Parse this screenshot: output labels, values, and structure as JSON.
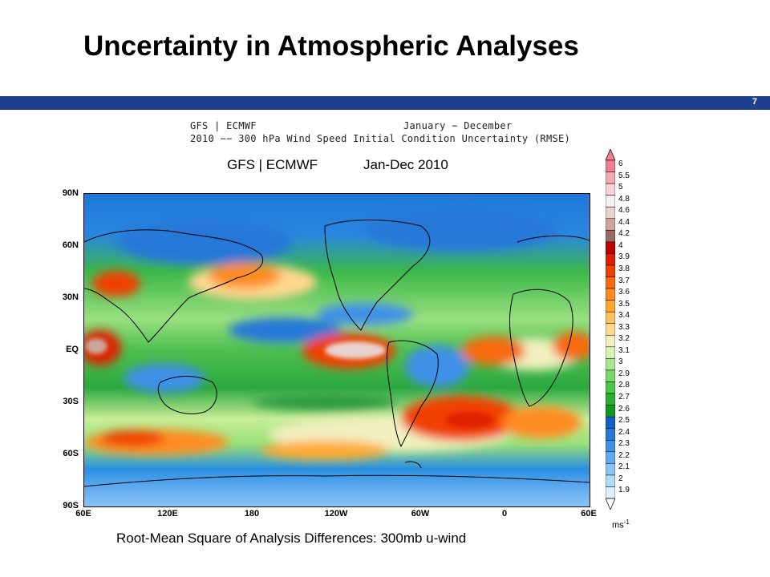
{
  "slide": {
    "title": "Uncertainty in Atmospheric Analyses",
    "page_number": "7",
    "caption": "Root-Mean Square of Analysis Differences: 300mb u-wind",
    "subtitle_left": "GFS | ECMWF",
    "subtitle_right": "Jan-Dec 2010"
  },
  "figure_header": {
    "line1_left": "GFS | ECMWF",
    "line1_right": "January − December",
    "line2": "2010 −− 300 hPa Wind Speed Initial Condition Uncertainty (RMSE)"
  },
  "map": {
    "lat_labels": [
      "90N",
      "60N",
      "30N",
      "EQ",
      "30S",
      "60S",
      "90S"
    ],
    "lon_labels": [
      "60E",
      "120E",
      "180",
      "120W",
      "60W",
      "0",
      "60E"
    ]
  },
  "colorbar": {
    "unit_base": "ms",
    "unit_exp": "-1",
    "levels": [
      "6",
      "5.5",
      "5",
      "4.8",
      "4.6",
      "4.4",
      "4.2",
      "4",
      "3.9",
      "3.8",
      "3.7",
      "3.6",
      "3.5",
      "3.4",
      "3.3",
      "3.2",
      "3.1",
      "3",
      "2.9",
      "2.8",
      "2.7",
      "2.6",
      "2.5",
      "2.4",
      "2.3",
      "2.2",
      "2.1",
      "2",
      "1.9"
    ],
    "colors": [
      "#f07f8f",
      "#f4a8b2",
      "#f8d2d6",
      "#f3f0ef",
      "#e9d3cf",
      "#cca69c",
      "#9a6a60",
      "#c00000",
      "#df2000",
      "#f04000",
      "#f86a10",
      "#ff8c20",
      "#ffa830",
      "#ffc060",
      "#ffd890",
      "#f2f0c0",
      "#d8f2b0",
      "#a8e890",
      "#78d868",
      "#48c848",
      "#28b030",
      "#109820",
      "#1060c8",
      "#2878d8",
      "#4090e8",
      "#60aaf0",
      "#88c4f4",
      "#b0dcf8",
      "#dff0fc"
    ]
  }
}
